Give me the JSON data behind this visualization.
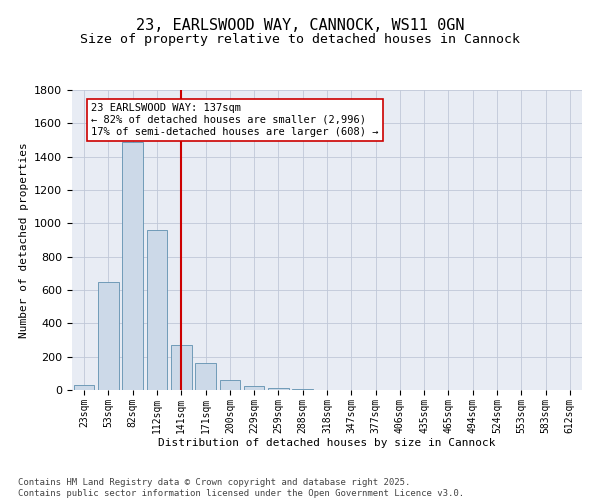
{
  "title_line1": "23, EARLSWOOD WAY, CANNOCK, WS11 0GN",
  "title_line2": "Size of property relative to detached houses in Cannock",
  "xlabel": "Distribution of detached houses by size in Cannock",
  "ylabel": "Number of detached properties",
  "categories": [
    "23sqm",
    "53sqm",
    "82sqm",
    "112sqm",
    "141sqm",
    "171sqm",
    "200sqm",
    "229sqm",
    "259sqm",
    "288sqm",
    "318sqm",
    "347sqm",
    "377sqm",
    "406sqm",
    "435sqm",
    "465sqm",
    "494sqm",
    "524sqm",
    "553sqm",
    "583sqm",
    "612sqm"
  ],
  "values": [
    30,
    650,
    1490,
    960,
    270,
    160,
    60,
    25,
    10,
    5,
    2,
    1,
    0,
    0,
    0,
    0,
    0,
    0,
    0,
    0,
    0
  ],
  "bar_color": "#ccd9e8",
  "bar_edge_color": "#6090b0",
  "vline_x_index": 4,
  "vline_color": "#cc0000",
  "annotation_text": "23 EARLSWOOD WAY: 137sqm\n← 82% of detached houses are smaller (2,996)\n17% of semi-detached houses are larger (608) →",
  "annotation_box_color": "#cc0000",
  "ylim": [
    0,
    1800
  ],
  "yticks": [
    0,
    200,
    400,
    600,
    800,
    1000,
    1200,
    1400,
    1600,
    1800
  ],
  "grid_color": "#c0c8d8",
  "background_color": "#e8ecf4",
  "footer_text": "Contains HM Land Registry data © Crown copyright and database right 2025.\nContains public sector information licensed under the Open Government Licence v3.0.",
  "title_fontsize": 11,
  "subtitle_fontsize": 9.5,
  "annotation_fontsize": 7.5,
  "footer_fontsize": 6.5,
  "axis_label_fontsize": 8,
  "tick_fontsize": 7,
  "ytick_fontsize": 8
}
